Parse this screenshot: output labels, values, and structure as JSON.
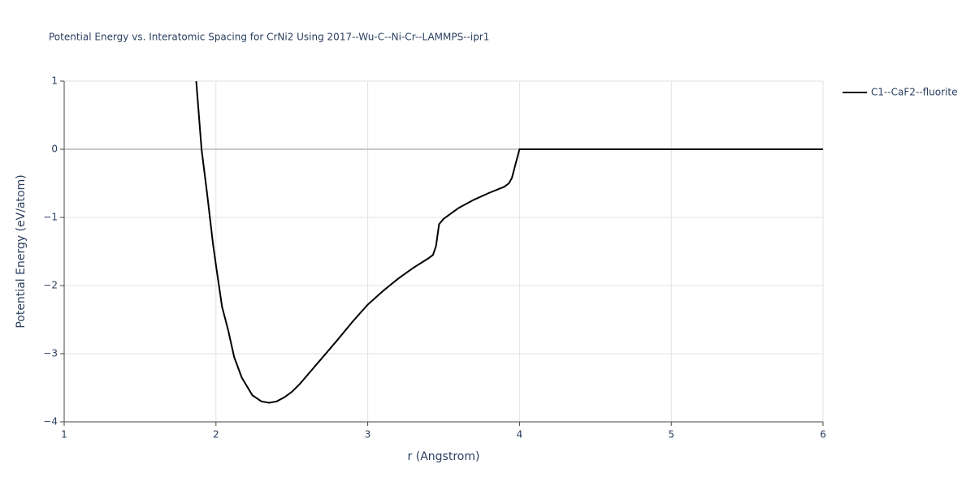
{
  "chart_data": {
    "type": "line",
    "title": "Potential Energy vs. Interatomic Spacing for CrNi2 Using 2017--Wu-C--Ni-Cr--LAMMPS--ipr1",
    "x_label": "r (Angstrom)",
    "y_label": "Potential Energy (eV/atom)",
    "xlim": [
      1,
      6
    ],
    "ylim": [
      -4,
      1
    ],
    "xticks": [
      1,
      2,
      3,
      4,
      5,
      6
    ],
    "yticks": [
      {
        "value": -4,
        "label": "−4"
      },
      {
        "value": -3,
        "label": "−3"
      },
      {
        "value": -2,
        "label": "−2"
      },
      {
        "value": -1,
        "label": "−1"
      },
      0,
      1
    ],
    "grid": true,
    "legend": "top-right",
    "x": [
      1.87,
      1.905,
      1.94,
      1.98,
      2.0,
      2.04,
      2.08,
      2.12,
      2.17,
      2.24,
      2.3,
      2.35,
      2.4,
      2.45,
      2.5,
      2.55,
      2.6,
      2.7,
      2.8,
      2.9,
      3.0,
      3.1,
      3.2,
      3.3,
      3.4,
      3.43,
      3.45,
      3.47,
      3.5,
      3.6,
      3.7,
      3.8,
      3.9,
      3.93,
      3.95,
      3.97,
      4.0,
      4.5,
      5.0,
      5.5,
      6.0
    ],
    "series": [
      {
        "name": "C1--CaF2--fluorite",
        "color": "#000000",
        "values": [
          1.0,
          0.0,
          -0.62,
          -1.38,
          -1.7,
          -2.31,
          -2.65,
          -3.05,
          -3.35,
          -3.61,
          -3.7,
          -3.72,
          -3.7,
          -3.64,
          -3.56,
          -3.45,
          -3.32,
          -3.06,
          -2.8,
          -2.53,
          -2.28,
          -2.08,
          -1.9,
          -1.74,
          -1.6,
          -1.55,
          -1.42,
          -1.1,
          -1.02,
          -0.86,
          -0.74,
          -0.64,
          -0.55,
          -0.5,
          -0.42,
          -0.25,
          0,
          0,
          0,
          0,
          0
        ]
      }
    ]
  }
}
